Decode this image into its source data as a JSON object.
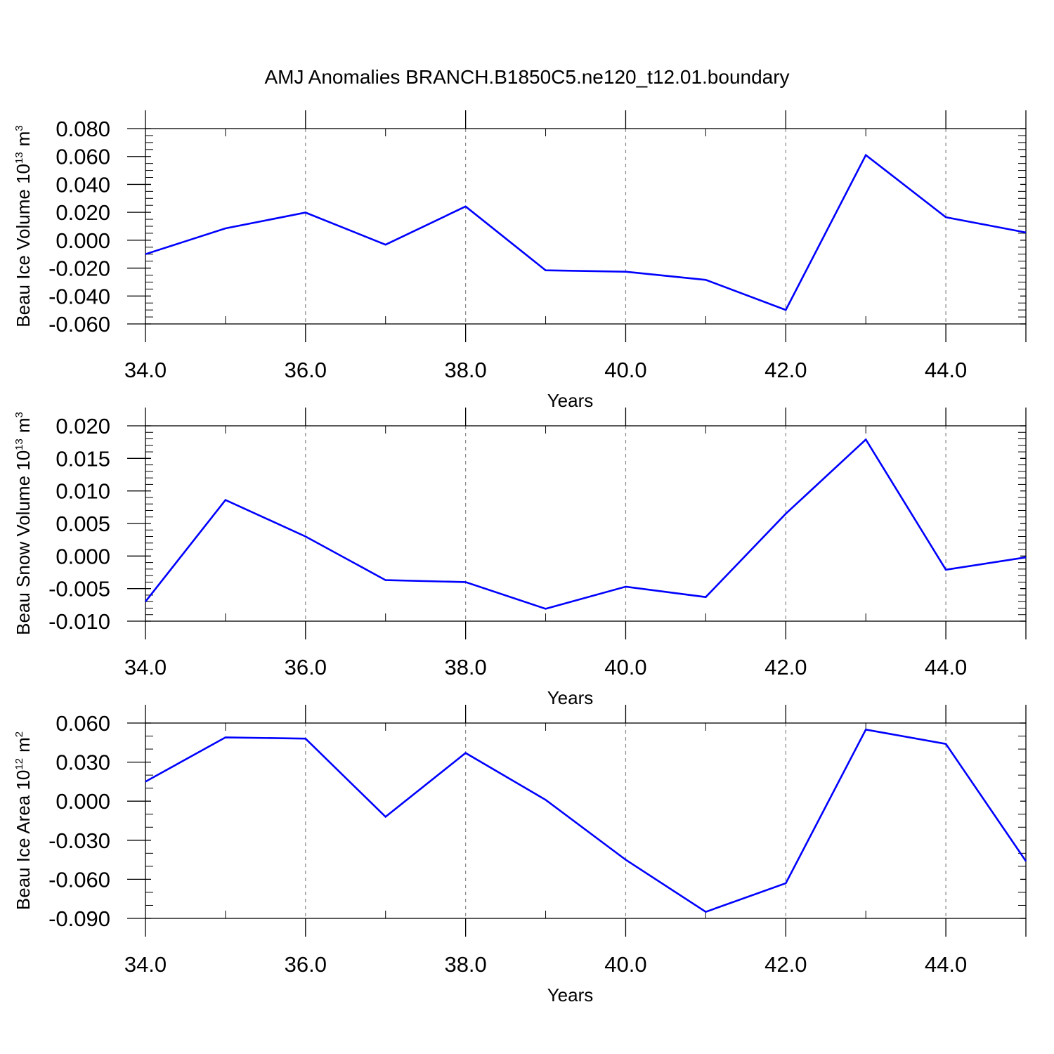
{
  "title": "AMJ Anomalies BRANCH.B1850C5.ne120_t12.01.boundary",
  "colors": {
    "line": "#0000ff",
    "axis": "#000000",
    "grid": "#888888"
  },
  "chart_data": [
    {
      "type": "line",
      "ylabel_main": "Beau Ice Volume 10",
      "ylabel_exp": "13",
      "ylabel_unit": "m",
      "ylabel_unit_exp": "3",
      "xlabel": "Years",
      "xlim": [
        34,
        45
      ],
      "ylim": [
        -0.06,
        0.08
      ],
      "x_ticks": [
        34,
        36,
        38,
        40,
        42,
        44
      ],
      "x_tick_labels": [
        "34.0",
        "36.0",
        "38.0",
        "40.0",
        "42.0",
        "44.0"
      ],
      "y_ticks": [
        -0.06,
        -0.04,
        -0.02,
        0.0,
        0.02,
        0.04,
        0.06,
        0.08
      ],
      "y_tick_labels": [
        "-0.060",
        "-0.040",
        "-0.020",
        "0.000",
        "0.020",
        "0.040",
        "0.060",
        "0.080"
      ],
      "y_minor_step": 0.005,
      "grid": "vertical dashed at major x ticks",
      "x": [
        34,
        35,
        36,
        37,
        38,
        39,
        40,
        41,
        42,
        43,
        44,
        45
      ],
      "values": [
        -0.01,
        0.0085,
        0.0198,
        -0.0032,
        0.0242,
        -0.0216,
        -0.0226,
        -0.0284,
        -0.05,
        0.061,
        0.0165,
        0.0055
      ]
    },
    {
      "type": "line",
      "ylabel_main": "Beau Snow Volume 10",
      "ylabel_exp": "13",
      "ylabel_unit": "m",
      "ylabel_unit_exp": "3",
      "xlabel": "Years",
      "xlim": [
        34,
        45
      ],
      "ylim": [
        -0.01,
        0.02
      ],
      "x_ticks": [
        34,
        36,
        38,
        40,
        42,
        44
      ],
      "x_tick_labels": [
        "34.0",
        "36.0",
        "38.0",
        "40.0",
        "42.0",
        "44.0"
      ],
      "y_ticks": [
        -0.01,
        -0.005,
        0.0,
        0.005,
        0.01,
        0.015,
        0.02
      ],
      "y_tick_labels": [
        "-0.010",
        "-0.005",
        "0.000",
        "0.005",
        "0.010",
        "0.015",
        "0.020"
      ],
      "y_minor_step": 0.001,
      "grid": "vertical dashed at major x ticks",
      "x": [
        34,
        35,
        36,
        37,
        38,
        39,
        40,
        41,
        42,
        43,
        44,
        45
      ],
      "values": [
        -0.007,
        0.0086,
        0.003,
        -0.0037,
        -0.004,
        -0.0081,
        -0.0047,
        -0.0063,
        0.0065,
        0.0179,
        -0.0021,
        -0.0002
      ]
    },
    {
      "type": "line",
      "ylabel_main": "Beau Ice Area 10",
      "ylabel_exp": "12",
      "ylabel_unit": "m",
      "ylabel_unit_exp": "2",
      "xlabel": "Years",
      "xlim": [
        34,
        45
      ],
      "ylim": [
        -0.09,
        0.06
      ],
      "x_ticks": [
        34,
        36,
        38,
        40,
        42,
        44
      ],
      "x_tick_labels": [
        "34.0",
        "36.0",
        "38.0",
        "40.0",
        "42.0",
        "44.0"
      ],
      "y_ticks": [
        -0.09,
        -0.06,
        -0.03,
        0.0,
        0.03,
        0.06
      ],
      "y_tick_labels": [
        "-0.090",
        "-0.060",
        "-0.030",
        "0.000",
        "0.030",
        "0.060"
      ],
      "y_minor_step": 0.01,
      "grid": "vertical dashed at major x ticks",
      "x": [
        34,
        35,
        36,
        37,
        38,
        39,
        40,
        41,
        42,
        43,
        44,
        45
      ],
      "values": [
        0.015,
        0.049,
        0.048,
        -0.012,
        0.037,
        0.001,
        -0.045,
        -0.085,
        -0.063,
        0.055,
        0.044,
        -0.046
      ]
    }
  ]
}
